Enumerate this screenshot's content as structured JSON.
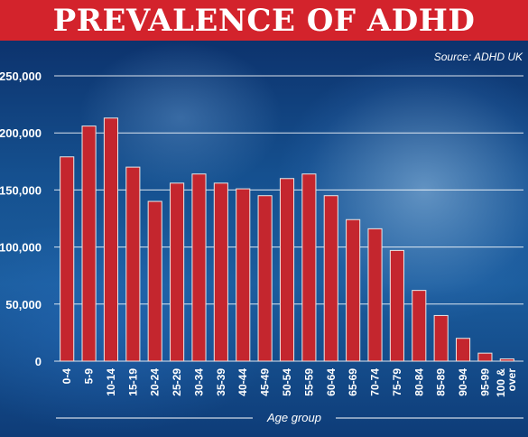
{
  "header": {
    "title": "PREVALENCE OF ADHD",
    "source": "Source: ADHD UK"
  },
  "colors": {
    "title_bg": "#d3232c",
    "bar": "#c4262e",
    "text": "#ffffff"
  },
  "chart_data": {
    "type": "bar",
    "title": "PREVALENCE OF ADHD",
    "xlabel": "Age group",
    "ylabel": "",
    "ylim": [
      0,
      250000
    ],
    "y_ticks": [
      0,
      50000,
      100000,
      150000,
      200000,
      250000
    ],
    "y_tick_labels": [
      "0",
      "50,000",
      "100,000",
      "150,000",
      "200,000",
      "250,000"
    ],
    "grid": true,
    "categories": [
      "0-4",
      "5-9",
      "10-14",
      "15-19",
      "20-24",
      "25-29",
      "30-34",
      "35-39",
      "40-44",
      "45-49",
      "50-54",
      "55-59",
      "60-64",
      "65-69",
      "70-74",
      "75-79",
      "80-84",
      "85-89",
      "90-94",
      "95-99",
      "100 & over"
    ],
    "values": [
      179000,
      206000,
      213000,
      170000,
      140000,
      156000,
      164000,
      156000,
      151000,
      145000,
      160000,
      164000,
      145000,
      124000,
      116000,
      97000,
      62000,
      40000,
      20000,
      7000,
      2000
    ]
  }
}
